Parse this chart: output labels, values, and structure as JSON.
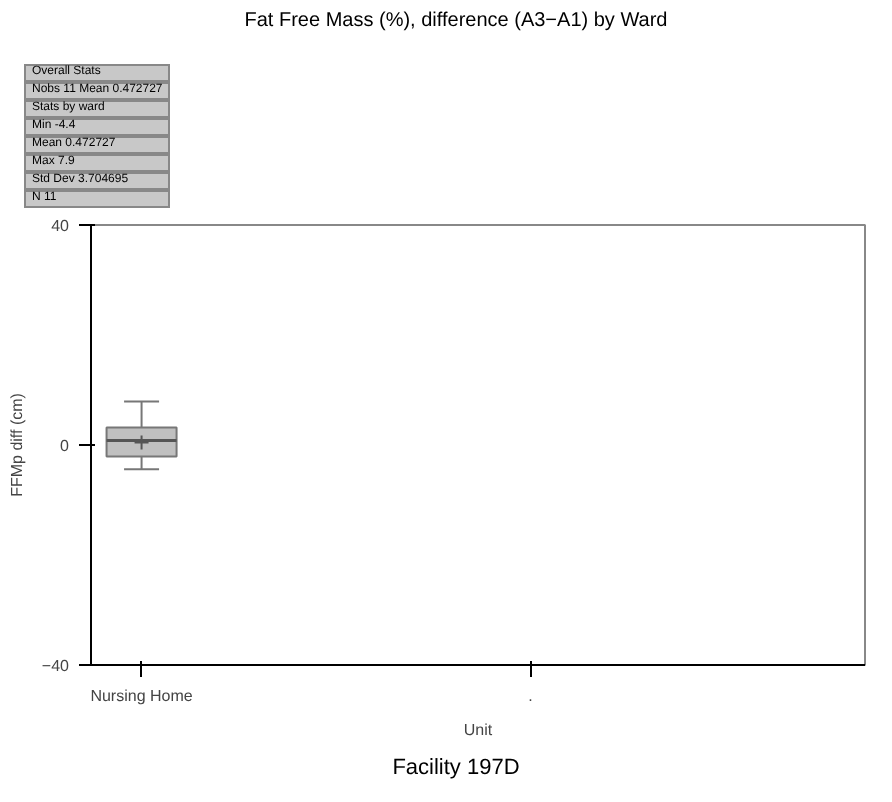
{
  "chart_data": {
    "type": "box",
    "title": "Fat Free Mass (%), difference (A3−A1) by Ward",
    "xlabel": "Unit",
    "ylabel": "FFMp diff (cm)",
    "categories": [
      "Nursing Home",
      "."
    ],
    "boxes": [
      {
        "low": -4.4,
        "q1": -2.1,
        "median": 0.8,
        "q3": 3.2,
        "high": 7.9,
        "mean": 0.472727
      },
      null
    ],
    "color": "#c0c0c0",
    "ylim": [
      -40,
      40
    ],
    "yticks": [
      -40,
      0,
      40
    ],
    "grid": false,
    "annotations": [
      "Overall Stats",
      "Nobs   11        Mean   0.472727",
      "Stats by ward",
      "Min   -4.4",
      "Mean   0.472727",
      "Max   7.9",
      "Std Dev   3.704695",
      "N   11",
      "Facility 197D"
    ]
  }
}
